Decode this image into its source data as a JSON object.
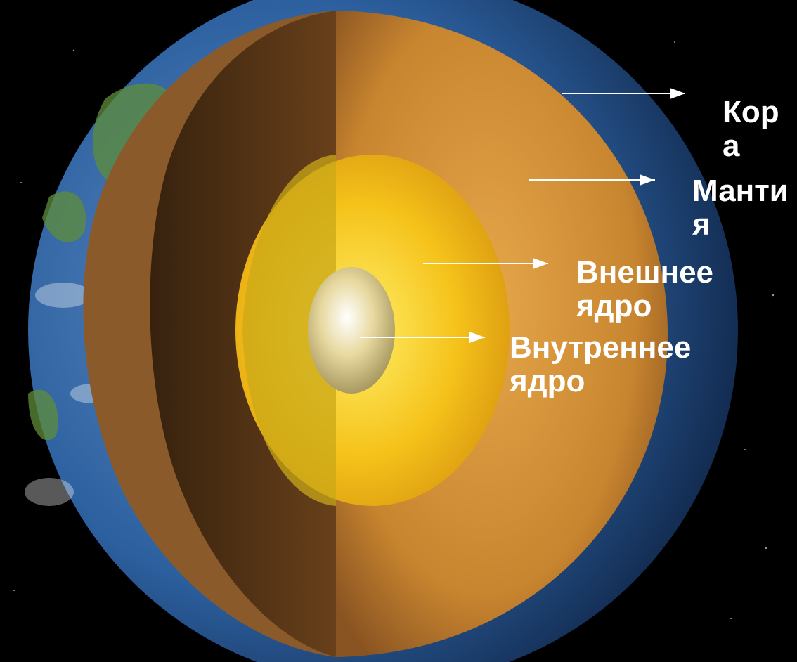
{
  "labels": {
    "crust": "Кор а",
    "mantle": "Манти я",
    "outer_core": "Внешнее ядро",
    "inner_core": "Внутреннее ядро"
  },
  "colors": {
    "space": "#000000",
    "ocean": "#2c5f9e",
    "crust": "#8a5a2b",
    "mantle": "#c8852f",
    "outer_core": "#f5c21a",
    "inner_core": "#e8d9a0",
    "label_text": "#ffffff"
  }
}
